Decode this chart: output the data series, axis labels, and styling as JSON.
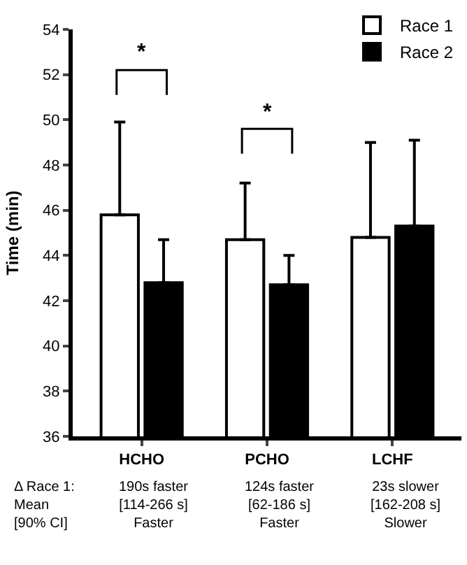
{
  "chart_data": {
    "type": "bar",
    "ylabel": "Time (min)",
    "categories": [
      "HCHO",
      "PCHO",
      "LCHF"
    ],
    "series": [
      {
        "name": "Race 1",
        "color": "#ffffff",
        "values": [
          45.8,
          44.7,
          44.8
        ],
        "errors": [
          [
            45.8,
            49.9
          ],
          [
            44.7,
            47.2
          ],
          [
            44.8,
            49.0
          ]
        ]
      },
      {
        "name": "Race 2",
        "color": "#000000",
        "values": [
          42.8,
          42.7,
          45.3
        ],
        "errors": [
          [
            42.8,
            44.7
          ],
          [
            42.7,
            44.0
          ],
          [
            45.3,
            49.1
          ]
        ]
      }
    ],
    "ylim": [
      36,
      54
    ],
    "yticks": [
      36,
      38,
      40,
      42,
      44,
      46,
      48,
      50,
      52,
      54
    ],
    "legend": "top right",
    "annotations": [
      "*",
      "*",
      "Δ Race 1:\nMean\n[90% CI]",
      "190s faster\n[114-266 s]\nFaster",
      "124s faster\n[62-186 s]\nFaster",
      "23s slower\n[162-208 s]\nSlower"
    ]
  }
}
